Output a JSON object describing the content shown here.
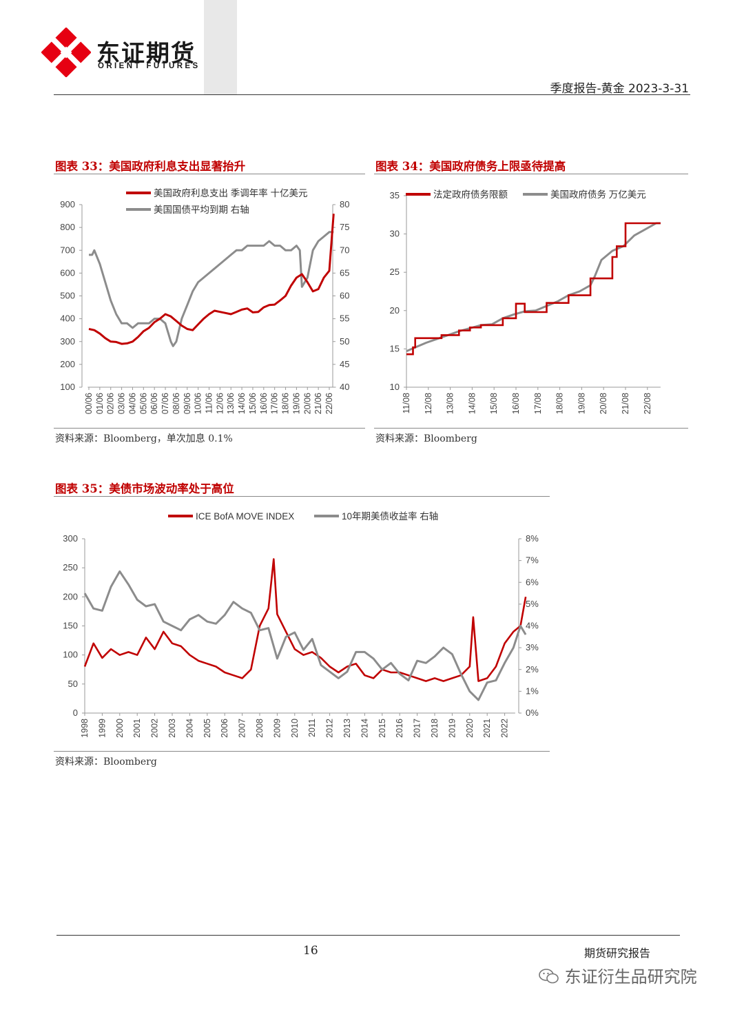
{
  "header": {
    "logo_cn": "东证期货",
    "logo_en": "ORIENT FUTURES",
    "report_title": "季度报告-黄金  2023-3-31"
  },
  "colors": {
    "red": "#c00000",
    "gray": "#8c8c8c",
    "title_red": "#c00000"
  },
  "fig33": {
    "title": "图表 33：美国政府利息支出显著抬升",
    "source": "资料来源：Bloomberg，单次加息 0.1%",
    "chart_data": {
      "type": "line",
      "series": [
        {
          "name": "美国政府利息支出 季调年率 十亿美元",
          "axis": "left",
          "x": [
            2000.5,
            2001,
            2001.5,
            2002,
            2002.5,
            2003,
            2003.5,
            2004,
            2004.5,
            2005,
            2005.5,
            2006,
            2006.5,
            2007,
            2007.5,
            2008,
            2008.5,
            2009,
            2009.5,
            2010,
            2010.5,
            2011,
            2011.5,
            2012,
            2012.5,
            2013,
            2013.5,
            2014,
            2014.5,
            2015,
            2015.5,
            2016,
            2016.5,
            2017,
            2017.5,
            2018,
            2018.5,
            2019,
            2019.5,
            2020,
            2020.5,
            2021,
            2021.5,
            2022,
            2022.5,
            2022.9
          ],
          "y": [
            355,
            350,
            335,
            315,
            300,
            298,
            290,
            292,
            300,
            320,
            345,
            360,
            385,
            400,
            420,
            410,
            390,
            370,
            355,
            350,
            375,
            400,
            420,
            435,
            430,
            425,
            420,
            430,
            440,
            445,
            428,
            430,
            450,
            460,
            462,
            480,
            500,
            545,
            580,
            595,
            560,
            520,
            530,
            580,
            610,
            860
          ]
        },
        {
          "name": "美国国债平均到期 右轴",
          "axis": "right",
          "x": [
            2000.5,
            2000.8,
            2001,
            2001.5,
            2002,
            2002.5,
            2003,
            2003.5,
            2004,
            2004.5,
            2005,
            2005.5,
            2006,
            2006.5,
            2007,
            2007.5,
            2008,
            2008.2,
            2008.5,
            2009,
            2009.5,
            2010,
            2010.5,
            2011,
            2011.5,
            2012,
            2012.5,
            2013,
            2013.5,
            2014,
            2014.5,
            2015,
            2015.5,
            2016,
            2016.5,
            2017,
            2017.5,
            2018,
            2018.5,
            2019,
            2019.5,
            2019.8,
            2020,
            2020.5,
            2021,
            2021.5,
            2022,
            2022.5,
            2022.9
          ],
          "y": [
            69,
            69,
            70,
            67,
            63,
            59,
            56,
            54,
            54,
            53,
            54,
            54,
            54,
            55,
            55,
            54,
            50,
            49,
            50,
            55,
            58,
            61,
            63,
            64,
            65,
            66,
            67,
            68,
            69,
            70,
            70,
            71,
            71,
            71,
            71,
            72,
            71,
            71,
            70,
            70,
            71,
            70,
            62,
            64,
            70,
            72,
            73,
            74,
            74
          ]
        }
      ],
      "xticks": [
        "00/06",
        "01/06",
        "02/06",
        "03/06",
        "04/06",
        "05/06",
        "06/06",
        "07/06",
        "08/06",
        "09/06",
        "10/06",
        "11/06",
        "12/06",
        "13/06",
        "14/06",
        "15/06",
        "16/06",
        "17/06",
        "18/06",
        "19/06",
        "20/06",
        "21/06",
        "22/06"
      ],
      "ylim_left": [
        100,
        900
      ],
      "yticks_left": [
        "100",
        "200",
        "300",
        "400",
        "500",
        "600",
        "700",
        "800",
        "900"
      ],
      "ylim_right": [
        40,
        80
      ],
      "yticks_right": [
        "40",
        "45",
        "50",
        "55",
        "60",
        "65",
        "70",
        "75",
        "80"
      ],
      "legend": "top-left"
    }
  },
  "fig34": {
    "title": "图表 34：美国政府债务上限亟待提高",
    "source": "资料来源：Bloomberg",
    "chart_data": {
      "type": "line",
      "series": [
        {
          "name": "法定政府债务限额",
          "step": true,
          "x": [
            2011.6,
            2011.9,
            2012.0,
            2012.5,
            2013.0,
            2013.2,
            2014.0,
            2014.5,
            2015.0,
            2016.0,
            2016.6,
            2016.6,
            2017.0,
            2018.0,
            2019.0,
            2019.5,
            2020.0,
            2021.0,
            2021.2,
            2021.6,
            2021.6,
            2023.2
          ],
          "y": [
            14.3,
            15.2,
            16.4,
            16.4,
            16.4,
            16.8,
            17.4,
            17.8,
            18.1,
            19.0,
            20.3,
            20.9,
            19.8,
            21.0,
            22.0,
            22.0,
            24.2,
            27.0,
            28.4,
            28.4,
            31.4,
            31.4
          ]
        },
        {
          "name": "美国政府债务 万亿美元",
          "x": [
            2011.6,
            2012.0,
            2012.5,
            2013.0,
            2013.5,
            2014.0,
            2014.5,
            2015.0,
            2015.5,
            2016.0,
            2016.5,
            2017.0,
            2017.5,
            2018.0,
            2018.5,
            2019.0,
            2019.5,
            2020.0,
            2020.2,
            2020.5,
            2021.0,
            2021.5,
            2022.0,
            2022.5,
            2023.0,
            2023.2
          ],
          "y": [
            14.7,
            15.2,
            15.8,
            16.3,
            16.8,
            17.3,
            17.7,
            18.1,
            18.2,
            19.0,
            19.5,
            19.9,
            20.0,
            20.6,
            21.2,
            22.0,
            22.5,
            23.3,
            24.5,
            26.6,
            27.8,
            28.4,
            29.8,
            30.6,
            31.4,
            31.4
          ]
        }
      ],
      "xticks": [
        "11/08",
        "12/08",
        "13/08",
        "14/08",
        "15/08",
        "16/08",
        "17/08",
        "18/08",
        "19/08",
        "20/08",
        "21/08",
        "22/08"
      ],
      "ylim": [
        10,
        35
      ],
      "yticks": [
        "10",
        "15",
        "20",
        "25",
        "30",
        "35"
      ],
      "legend": "top"
    }
  },
  "fig35": {
    "title": "图表 35：美债市场波动率处于高位",
    "source": "资料来源：Bloomberg",
    "chart_data": {
      "type": "line",
      "series": [
        {
          "name": "ICE BofA MOVE INDEX",
          "axis": "left",
          "x": [
            1998.0,
            1998.5,
            1999.0,
            1999.5,
            2000.0,
            2000.5,
            2001.0,
            2001.5,
            2002.0,
            2002.5,
            2003.0,
            2003.5,
            2004.0,
            2004.5,
            2005.0,
            2005.5,
            2006.0,
            2006.5,
            2007.0,
            2007.5,
            2008.0,
            2008.5,
            2008.8,
            2009.0,
            2009.5,
            2010.0,
            2010.5,
            2011.0,
            2011.5,
            2012.0,
            2012.5,
            2013.0,
            2013.5,
            2014.0,
            2014.5,
            2015.0,
            2015.5,
            2016.0,
            2016.5,
            2017.0,
            2017.5,
            2018.0,
            2018.5,
            2019.0,
            2019.5,
            2020.0,
            2020.2,
            2020.5,
            2021.0,
            2021.5,
            2022.0,
            2022.5,
            2022.9,
            2023.2
          ],
          "y": [
            80,
            120,
            95,
            110,
            100,
            105,
            100,
            130,
            110,
            140,
            120,
            115,
            100,
            90,
            85,
            80,
            70,
            65,
            60,
            75,
            150,
            180,
            265,
            170,
            140,
            110,
            100,
            105,
            95,
            80,
            70,
            80,
            85,
            65,
            60,
            75,
            70,
            70,
            65,
            60,
            55,
            60,
            55,
            60,
            65,
            80,
            165,
            55,
            60,
            80,
            120,
            140,
            150,
            200
          ]
        },
        {
          "name": "10年期美债收益率 右轴",
          "axis": "right",
          "x": [
            1998.0,
            1998.5,
            1999.0,
            1999.5,
            2000.0,
            2000.5,
            2001.0,
            2001.5,
            2002.0,
            2002.5,
            2003.0,
            2003.5,
            2004.0,
            2004.5,
            2005.0,
            2005.5,
            2006.0,
            2006.5,
            2007.0,
            2007.5,
            2008.0,
            2008.5,
            2009.0,
            2009.5,
            2010.0,
            2010.5,
            2011.0,
            2011.5,
            2012.0,
            2012.5,
            2013.0,
            2013.5,
            2014.0,
            2014.5,
            2015.0,
            2015.5,
            2016.0,
            2016.5,
            2017.0,
            2017.5,
            2018.0,
            2018.5,
            2019.0,
            2019.5,
            2020.0,
            2020.5,
            2021.0,
            2021.5,
            2022.0,
            2022.5,
            2022.9,
            2023.2
          ],
          "y": [
            5.5,
            4.8,
            4.7,
            5.8,
            6.5,
            5.9,
            5.2,
            4.9,
            5.0,
            4.2,
            4.0,
            3.8,
            4.3,
            4.5,
            4.2,
            4.1,
            4.5,
            5.1,
            4.8,
            4.6,
            3.8,
            3.9,
            2.5,
            3.5,
            3.7,
            2.9,
            3.4,
            2.2,
            1.9,
            1.6,
            1.9,
            2.8,
            2.8,
            2.5,
            2.0,
            2.3,
            1.8,
            1.5,
            2.4,
            2.3,
            2.6,
            3.0,
            2.7,
            1.8,
            1.0,
            0.6,
            1.4,
            1.5,
            2.3,
            3.0,
            4.0,
            3.6
          ]
        }
      ],
      "xticks": [
        "1998",
        "1999",
        "2000",
        "2001",
        "2002",
        "2003",
        "2004",
        "2005",
        "2006",
        "2007",
        "2008",
        "2009",
        "2010",
        "2011",
        "2012",
        "2013",
        "2014",
        "2015",
        "2016",
        "2017",
        "2018",
        "2019",
        "2020",
        "2021",
        "2022"
      ],
      "ylim_left": [
        0,
        300
      ],
      "yticks_left": [
        "0",
        "50",
        "100",
        "150",
        "200",
        "250",
        "300"
      ],
      "ylim_right": [
        0,
        8
      ],
      "yticks_right": [
        "0%",
        "1%",
        "2%",
        "3%",
        "4%",
        "5%",
        "6%",
        "7%",
        "8%"
      ],
      "legend": "top"
    }
  },
  "footer": {
    "page_number": "16",
    "label": "期货研究报告",
    "wechat": "东证衍生品研究院"
  }
}
